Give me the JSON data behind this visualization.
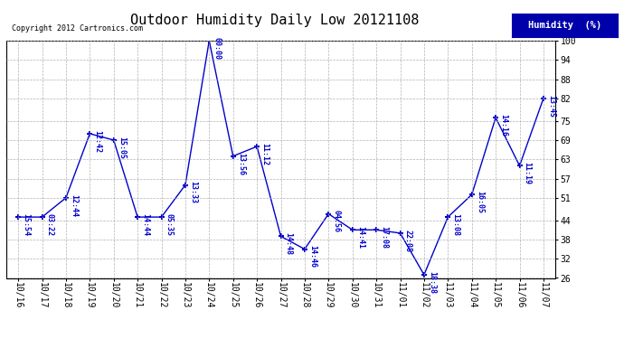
{
  "title": "Outdoor Humidity Daily Low 20121108",
  "copyright": "Copyright 2012 Cartronics.com",
  "legend_label": "Humidity  (%)",
  "x_labels": [
    "10/16",
    "10/17",
    "10/18",
    "10/19",
    "10/20",
    "10/21",
    "10/22",
    "10/23",
    "10/24",
    "10/25",
    "10/26",
    "10/27",
    "10/28",
    "10/29",
    "10/30",
    "10/31",
    "11/01",
    "11/02",
    "11/03",
    "11/04",
    "11/05",
    "11/06",
    "11/07"
  ],
  "y_values": [
    45,
    45,
    51,
    71,
    69,
    45,
    45,
    55,
    100,
    64,
    67,
    39,
    35,
    46,
    41,
    41,
    40,
    27,
    45,
    52,
    76,
    61,
    82
  ],
  "point_labels": [
    "15:54",
    "03:22",
    "12:44",
    "12:42",
    "15:05",
    "14:44",
    "05:35",
    "13:33",
    "00:00",
    "13:56",
    "11:12",
    "14:48",
    "14:46",
    "04:56",
    "14:41",
    "17:08",
    "22:08",
    "18:38",
    "13:08",
    "16:05",
    "14:16",
    "11:19",
    "13:45"
  ],
  "ylim": [
    26,
    100
  ],
  "yticks": [
    26,
    32,
    38,
    44,
    51,
    57,
    63,
    69,
    75,
    82,
    88,
    94,
    100
  ],
  "line_color": "#0000cc",
  "marker_color": "#0000cc",
  "bg_color": "#ffffff",
  "grid_color": "#aaaaaa",
  "title_fontsize": 11,
  "tick_fontsize": 7,
  "legend_bg": "#0000aa",
  "legend_fg": "#ffffff"
}
